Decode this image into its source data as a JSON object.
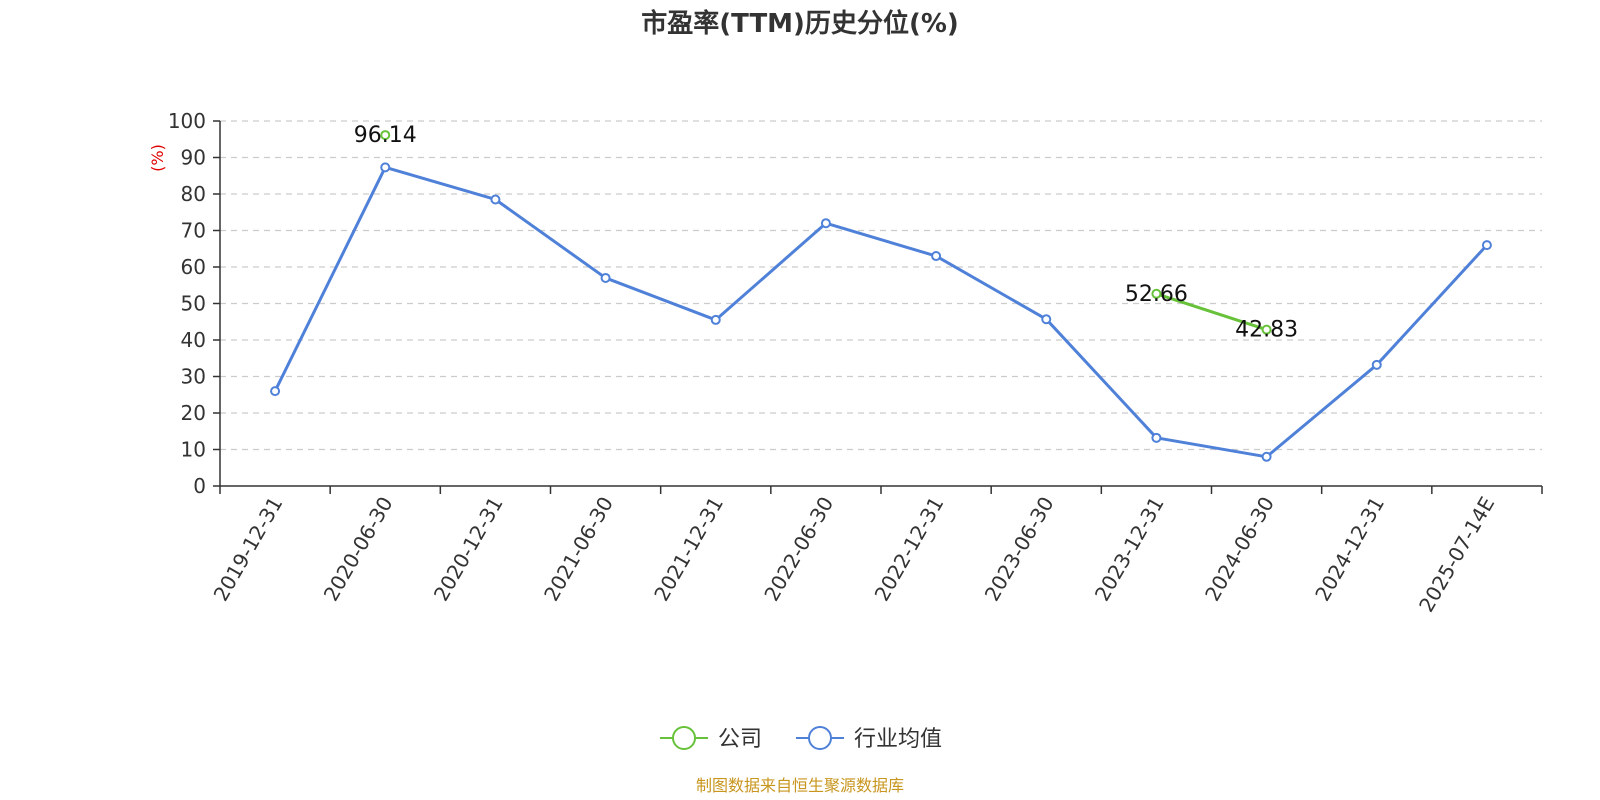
{
  "chart_data": {
    "type": "line",
    "title": "市盈率(TTM)历史分位(%)",
    "ylabel": "(%)",
    "ylim": [
      0,
      100
    ],
    "yticks": [
      0,
      10,
      20,
      30,
      40,
      50,
      60,
      70,
      80,
      90,
      100
    ],
    "categories": [
      "2019-12-31",
      "2020-06-30",
      "2020-12-31",
      "2021-06-30",
      "2021-12-31",
      "2022-06-30",
      "2022-12-31",
      "2023-06-30",
      "2023-12-31",
      "2024-06-30",
      "2024-12-31",
      "2025-07-14E"
    ],
    "grid": true,
    "legend_position": "bottom-center",
    "series": [
      {
        "name": "公司",
        "color": "#67c23a",
        "values": [
          null,
          96.14,
          null,
          null,
          null,
          null,
          null,
          null,
          52.66,
          42.83,
          null,
          null
        ],
        "data_labels": [
          "",
          "96.14",
          "",
          "",
          "",
          "",
          "",
          "",
          "52.66",
          "42.83",
          "",
          ""
        ]
      },
      {
        "name": "行业均值",
        "color": "#4f81d9",
        "values": [
          26.0,
          87.3,
          78.5,
          57.0,
          45.5,
          72.0,
          63.0,
          45.7,
          13.2,
          8.0,
          33.2,
          66.0
        ]
      }
    ]
  },
  "source_note": "制图数据来自恒生聚源数据库",
  "colors": {
    "title": "#333333",
    "axis": "#333333",
    "grid": "#cccccc",
    "ylabel": "#e00000",
    "source": "#c8961e"
  }
}
